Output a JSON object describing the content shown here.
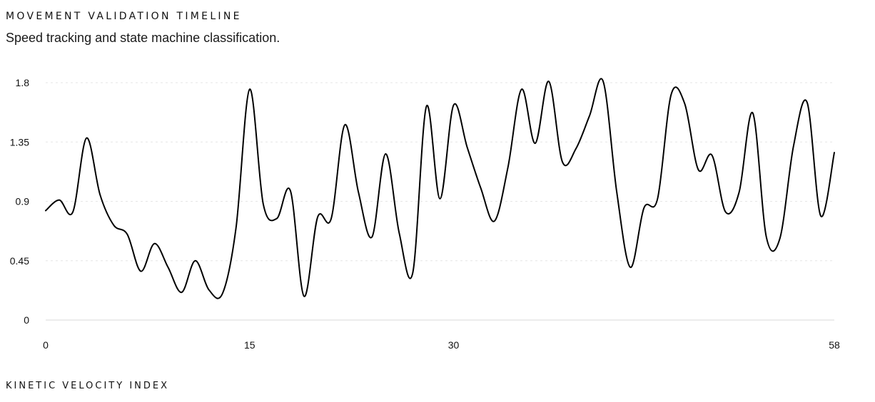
{
  "header": {
    "title": "MOVEMENT VALIDATION TIMELINE",
    "subtitle": "Speed tracking and state machine classification."
  },
  "footer": {
    "label": "KINETIC VELOCITY INDEX"
  },
  "chart_data": {
    "type": "line",
    "title": "MOVEMENT VALIDATION TIMELINE",
    "subtitle": "Speed tracking and state machine classification.",
    "xlabel": "KINETIC VELOCITY INDEX",
    "ylabel": "",
    "xlim": [
      0,
      58
    ],
    "ylim": [
      0,
      1.8
    ],
    "x_ticks": [
      0,
      15,
      30,
      58
    ],
    "y_ticks": [
      0,
      0.45,
      0.9,
      1.35,
      1.8
    ],
    "y_tick_labels": [
      "0",
      "0.45",
      "0.9",
      "1.35",
      "1.8"
    ],
    "grid": "horizontal dotted",
    "line_color": "#000000",
    "series": [
      {
        "x": [
          0,
          1,
          2,
          3,
          4,
          5,
          6,
          7,
          8,
          9,
          10,
          11,
          12,
          13,
          14,
          15,
          16,
          17,
          18,
          19,
          20,
          21,
          22,
          23,
          24,
          25,
          26,
          27,
          28,
          29,
          30,
          31,
          32,
          33,
          34,
          35,
          36,
          37,
          38,
          39,
          40,
          41,
          42,
          43,
          44,
          45,
          46,
          47,
          48,
          49,
          50,
          51,
          52,
          53,
          54,
          55,
          56,
          57,
          58
        ],
        "values": [
          0.83,
          0.91,
          0.82,
          1.38,
          0.95,
          0.72,
          0.65,
          0.37,
          0.58,
          0.4,
          0.21,
          0.45,
          0.23,
          0.2,
          0.7,
          1.75,
          0.88,
          0.77,
          0.98,
          0.18,
          0.78,
          0.77,
          1.48,
          0.97,
          0.63,
          1.26,
          0.66,
          0.36,
          1.62,
          0.92,
          1.63,
          1.31,
          1.0,
          0.75,
          1.16,
          1.75,
          1.34,
          1.81,
          1.2,
          1.3,
          1.55,
          1.81,
          0.97,
          0.4,
          0.85,
          0.92,
          1.71,
          1.64,
          1.14,
          1.25,
          0.82,
          0.97,
          1.57,
          0.63,
          0.62,
          1.32,
          1.65,
          0.79,
          1.27
        ]
      }
    ]
  }
}
